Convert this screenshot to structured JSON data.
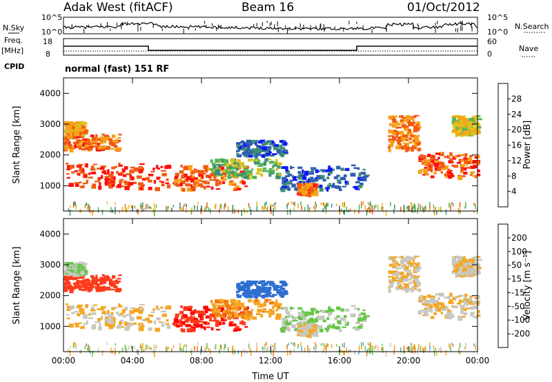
{
  "header": {
    "station": "Adak West (fitACF)",
    "beam": "Beam 16",
    "date": "01/Oct/2012"
  },
  "sky_panel": {
    "left_label": "N.Sky",
    "right_label": "N.Search",
    "left_ticks": [
      "10^5",
      "10^0"
    ],
    "right_ticks": [
      "10^5",
      "10^0"
    ]
  },
  "freq_panel": {
    "left_label": "Freq.",
    "left_unit": "[MHz]",
    "left_ticks": [
      "18",
      "8"
    ],
    "right_label": "Nave",
    "right_ticks": [
      "60",
      "0"
    ],
    "cpid_label": "CPID",
    "cpid_text": "normal (fast) 151 RF"
  },
  "chart_data": [
    {
      "type": "heatmap",
      "name": "power",
      "ylabel": "Slant Range [km]",
      "ylim": [
        180,
        4500
      ],
      "yticks": [
        "1000",
        "2000",
        "3000",
        "4000"
      ],
      "xlim": [
        0,
        24
      ],
      "xticks": [
        "00:00",
        "04:00",
        "08:00",
        "12:00",
        "16:00",
        "20:00",
        "00:00"
      ],
      "colorbar": {
        "label": "Power [dB]",
        "ticks": [
          "4",
          "8",
          "12",
          "16",
          "20",
          "24",
          "28"
        ],
        "colors": [
          "#0d16ff",
          "#2f5fb0",
          "#3f8f70",
          "#55b55a",
          "#d9c21c",
          "#f7a11a",
          "#f25a12",
          "#ff0c0c"
        ]
      }
    },
    {
      "type": "heatmap",
      "name": "velocity",
      "ylabel": "Slant Range [km]",
      "ylim": [
        180,
        4500
      ],
      "yticks": [
        "1000",
        "2000",
        "3000",
        "4000"
      ],
      "xlim": [
        0,
        24
      ],
      "xticks": [
        "00:00",
        "04:00",
        "08:00",
        "12:00",
        "16:00",
        "20:00",
        "00:00"
      ],
      "xlabel": "Time UT",
      "colorbar": {
        "label": "Velocity [m s⁻¹]",
        "ticks": [
          "200",
          "100",
          "50",
          "15",
          "-15",
          "-50",
          "-100",
          "-200"
        ],
        "colors": [
          "#1e3fc4",
          "#2e6fd0",
          "#4aa8e0",
          "#66c64a",
          "#c8c8c0",
          "#f5a623",
          "#f27a10",
          "#ff3a1a",
          "#ff0000"
        ]
      }
    }
  ],
  "echo_regions": [
    {
      "t": [
        0.0,
        6.1
      ],
      "r": [
        950,
        1750
      ],
      "p": 28,
      "v": -15
    },
    {
      "t": [
        0.0,
        3.2
      ],
      "r": [
        2200,
        2700
      ],
      "p": 25,
      "v": -150
    },
    {
      "t": [
        0.0,
        1.2
      ],
      "r": [
        2700,
        3100
      ],
      "p": 22,
      "v": 10
    },
    {
      "t": [
        6.3,
        10.5
      ],
      "r": [
        900,
        1700
      ],
      "p": 26,
      "v": -200
    },
    {
      "t": [
        8.5,
        12.5
      ],
      "r": [
        1300,
        1900
      ],
      "p": 14,
      "v": -40
    },
    {
      "t": [
        12.5,
        17.5
      ],
      "r": [
        900,
        1700
      ],
      "p": 6,
      "v": 20
    },
    {
      "t": [
        13.5,
        14.5
      ],
      "r": [
        750,
        1100
      ],
      "p": 25,
      "v": -10
    },
    {
      "t": [
        18.8,
        20.5
      ],
      "r": [
        2200,
        3300
      ],
      "p": 24,
      "v": -10
    },
    {
      "t": [
        20.5,
        24.0
      ],
      "r": [
        1300,
        2100
      ],
      "p": 26,
      "v": -10
    },
    {
      "t": [
        22.5,
        24.0
      ],
      "r": [
        2700,
        3300
      ],
      "p": 18,
      "v": -10
    },
    {
      "t": [
        10.0,
        12.8
      ],
      "r": [
        2000,
        2500
      ],
      "p": 6,
      "v": 120
    }
  ]
}
